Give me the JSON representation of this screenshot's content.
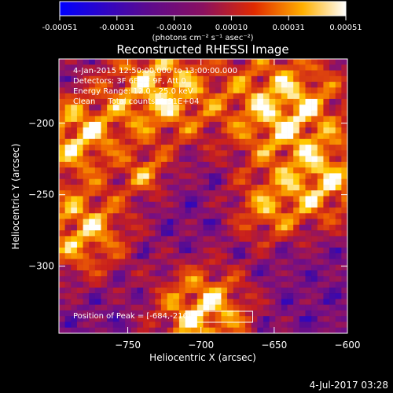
{
  "chart_data": {
    "type": "heatmap",
    "title": "Reconstructed RHESSI Image",
    "xlabel": "Heliocentric X (arcsec)",
    "ylabel": "Heliocentric Y (arcsec)",
    "xlim": [
      -797,
      -600
    ],
    "ylim": [
      -347,
      -155
    ],
    "xticks": [
      -750,
      -700,
      -650,
      -600
    ],
    "yticks": [
      -200,
      -250,
      -300
    ],
    "colorbar": {
      "label": "(photons cm⁻² s⁻¹ asec⁻²)",
      "range": [
        -0.00051,
        0.00051
      ],
      "ticks": [
        "-0.00051",
        "-0.00031",
        "-0.00010",
        "0.00010",
        "0.00031",
        "0.00051"
      ],
      "colormap": [
        "#0000ff",
        "#4a0a9a",
        "#7a1080",
        "#c81e1e",
        "#f06400",
        "#ffc800",
        "#ffffff"
      ]
    },
    "annotations": [
      "4-Jan-2015 12:50:00.000 to 13:00:00.000",
      "Detectors: 3F 6F 7F 9F, Att 0",
      "Energy Range: 12.0 - 25.0 keV",
      "Clean     Total counts: 1.51E+04"
    ],
    "peak_text": "Position of Peak = [-684,-216]",
    "peak": {
      "x": -684,
      "y": -216
    },
    "grid": false,
    "legend": "none",
    "grid_size": [
      48,
      48
    ]
  },
  "footer": {
    "date": "4-Jul-2017 03:28"
  }
}
